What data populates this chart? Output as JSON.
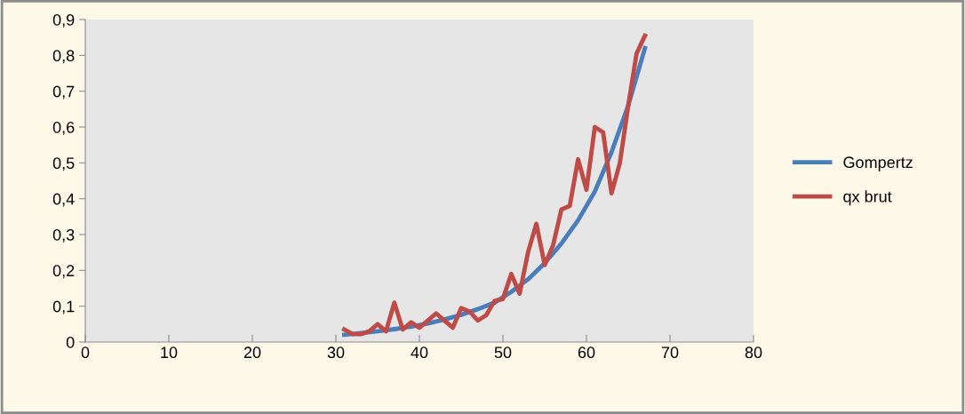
{
  "chart_data": {
    "type": "line",
    "legend": "right",
    "grid": false,
    "marker": "none",
    "line_style": "solid",
    "xlim": [
      0,
      80
    ],
    "xticks": [
      0,
      10,
      20,
      30,
      40,
      50,
      60,
      70,
      80
    ],
    "ylim": [
      0,
      0.9
    ],
    "yticks": [
      {
        "value": 0,
        "label": "0"
      },
      {
        "value": 0.1,
        "label": "0,1"
      },
      {
        "value": 0.2,
        "label": "0,2"
      },
      {
        "value": 0.3,
        "label": "0,3"
      },
      {
        "value": 0.4,
        "label": "0,4"
      },
      {
        "value": 0.5,
        "label": "0,5"
      },
      {
        "value": 0.6,
        "label": "0,6"
      },
      {
        "value": 0.7,
        "label": "0,7"
      },
      {
        "value": 0.8,
        "label": "0,8"
      },
      {
        "value": 0.9,
        "label": "0,9"
      }
    ],
    "series": [
      {
        "name": "Gompertz",
        "color": "#4a7ebb",
        "x": [
          31,
          33,
          35,
          37,
          39,
          41,
          43,
          45,
          47,
          49,
          51,
          53,
          55,
          57,
          59,
          61,
          63,
          65,
          67
        ],
        "values": [
          0.02,
          0.025,
          0.03,
          0.036,
          0.043,
          0.052,
          0.063,
          0.076,
          0.092,
          0.11,
          0.14,
          0.175,
          0.22,
          0.275,
          0.34,
          0.42,
          0.53,
          0.66,
          0.82
        ]
      },
      {
        "name": "qx brut",
        "color": "#be4b48",
        "x": [
          31,
          32,
          33,
          34,
          35,
          36,
          37,
          38,
          39,
          40,
          41,
          42,
          43,
          44,
          45,
          46,
          47,
          48,
          49,
          50,
          51,
          52,
          53,
          54,
          55,
          56,
          57,
          58,
          59,
          60,
          61,
          62,
          63,
          64,
          65,
          66,
          67
        ],
        "values": [
          0.035,
          0.022,
          0.022,
          0.03,
          0.05,
          0.03,
          0.11,
          0.035,
          0.055,
          0.04,
          0.06,
          0.08,
          0.06,
          0.04,
          0.095,
          0.085,
          0.06,
          0.075,
          0.115,
          0.12,
          0.19,
          0.135,
          0.25,
          0.33,
          0.215,
          0.27,
          0.37,
          0.38,
          0.51,
          0.425,
          0.6,
          0.585,
          0.415,
          0.5,
          0.66,
          0.805,
          0.855
        ]
      }
    ]
  }
}
